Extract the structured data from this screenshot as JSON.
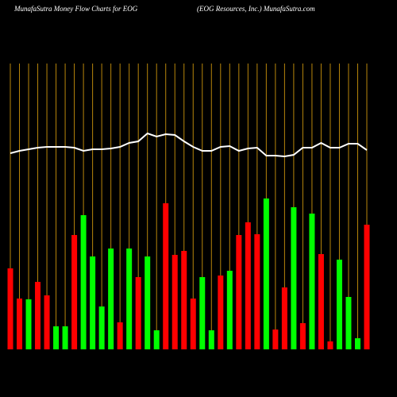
{
  "chart_data": {
    "type": "money-flow",
    "title": "MunafaSutra  Money Flow  Charts for EOG",
    "subtitle": "(EOG Resources,  Inc.) MunafaSutra.com",
    "ylim": [
      0,
      360
    ],
    "series": [
      {
        "type": "bar",
        "colors": [
          "#ff0000",
          "#ff0000",
          "#00ff00",
          "#ff0000",
          "#ff0000",
          "#00ff00",
          "#00ff00",
          "#ff0000",
          "#00ff00",
          "#00ff00",
          "#00ff00",
          "#00ff00",
          "#ff0000",
          "#00ff00",
          "#ff0000",
          "#00ff00",
          "#00ff00",
          "#ff0000",
          "#ff0000",
          "#ff0000",
          "#ff0000",
          "#00ff00",
          "#00ff00",
          "#ff0000",
          "#00ff00",
          "#ff0000",
          "#ff0000",
          "#ff0000",
          "#00ff00",
          "#ff0000",
          "#ff0000",
          "#00ff00",
          "#ff0000",
          "#00ff00",
          "#ff0000",
          "#ff0000",
          "#00ff00",
          "#00ff00",
          "#00ff00",
          "#ff0000"
        ],
        "values": [
          102,
          64,
          63,
          85,
          68,
          29,
          29,
          144,
          169,
          117,
          54,
          127,
          34,
          127,
          91,
          117,
          24,
          184,
          119,
          124,
          64,
          91,
          24,
          93,
          99,
          144,
          160,
          145,
          190,
          25,
          78,
          179,
          33,
          171,
          120,
          10,
          113,
          66,
          14,
          157
        ]
      },
      {
        "type": "line",
        "color": "#ffffff",
        "values": [
          247,
          250,
          252,
          254,
          255,
          255,
          255,
          254,
          250,
          252,
          252,
          253,
          255,
          260,
          262,
          272,
          268,
          271,
          270,
          262,
          255,
          250,
          250,
          255,
          256,
          250,
          253,
          254,
          244,
          244,
          243,
          245,
          254,
          254,
          260,
          254,
          254,
          259,
          259,
          251
        ]
      }
    ],
    "gridline_color": "#b8860b"
  }
}
